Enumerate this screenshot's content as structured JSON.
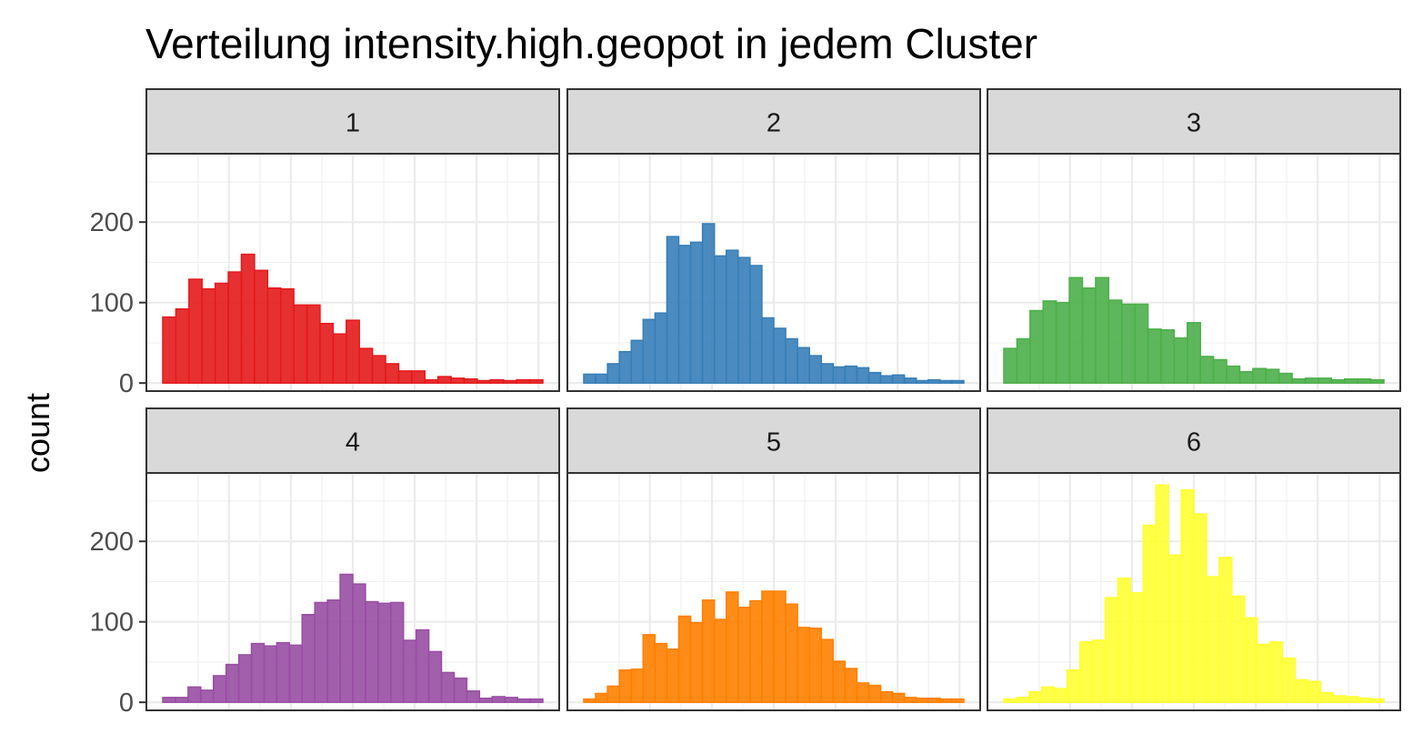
{
  "chart_data": {
    "type": "bar",
    "title": "Verteilung intensity.high.geopot in jedem Cluster",
    "xlabel": "",
    "ylabel": "count",
    "ylim": [
      -10,
      285
    ],
    "y_ticks": [
      0,
      100,
      200
    ],
    "grid": true,
    "layout": "facet 2x3",
    "panels": [
      {
        "label": "1",
        "color": "#E41A1C",
        "values": [
          82,
          92,
          129,
          117,
          124,
          138,
          160,
          140,
          118,
          117,
          97,
          97,
          74,
          61,
          78,
          43,
          34,
          24,
          15,
          15,
          4,
          8,
          6,
          5,
          3,
          4,
          3,
          4,
          4
        ]
      },
      {
        "label": "2",
        "color": "#377EB8",
        "values": [
          11,
          11,
          24,
          39,
          53,
          79,
          87,
          182,
          171,
          175,
          198,
          158,
          165,
          156,
          146,
          81,
          68,
          55,
          44,
          34,
          24,
          20,
          21,
          19,
          13,
          9,
          10,
          6,
          3,
          4,
          3,
          3
        ]
      },
      {
        "label": "3",
        "color": "#4DAF4A",
        "values": [
          43,
          55,
          90,
          102,
          100,
          131,
          118,
          131,
          103,
          98,
          98,
          67,
          66,
          56,
          75,
          33,
          29,
          21,
          14,
          18,
          17,
          12,
          5,
          6,
          6,
          4,
          5,
          5,
          4
        ]
      },
      {
        "label": "4",
        "color": "#984EA3",
        "values": [
          6,
          6,
          19,
          15,
          33,
          47,
          59,
          73,
          70,
          74,
          71,
          109,
          124,
          127,
          159,
          147,
          125,
          123,
          124,
          77,
          90,
          63,
          37,
          30,
          14,
          5,
          7,
          6,
          4,
          4
        ]
      },
      {
        "label": "5",
        "color": "#FF7F00",
        "values": [
          4,
          11,
          20,
          40,
          41,
          84,
          73,
          66,
          107,
          99,
          127,
          103,
          137,
          118,
          126,
          138,
          138,
          122,
          93,
          92,
          78,
          51,
          42,
          24,
          21,
          13,
          11,
          6,
          5,
          5,
          4,
          4
        ]
      },
      {
        "label": "6",
        "color": "#FFFF33",
        "values": [
          4,
          6,
          13,
          19,
          17,
          40,
          75,
          77,
          130,
          154,
          136,
          220,
          270,
          183,
          264,
          234,
          156,
          180,
          132,
          105,
          72,
          75,
          55,
          28,
          26,
          12,
          8,
          7,
          5,
          4
        ]
      }
    ]
  }
}
